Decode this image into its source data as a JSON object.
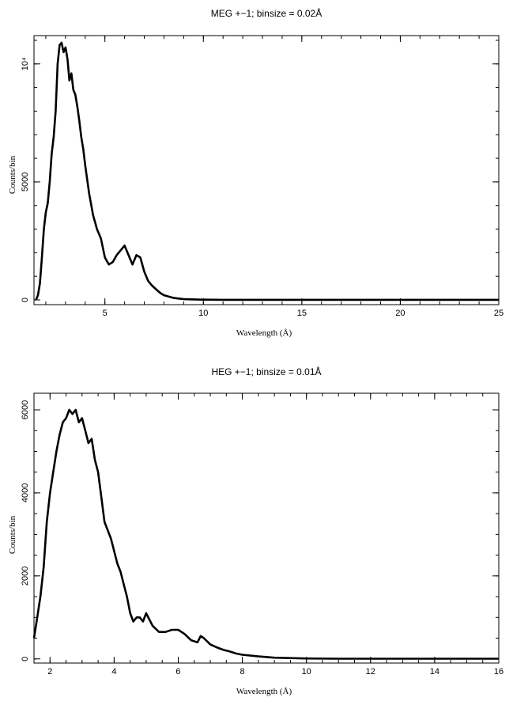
{
  "chart_data": [
    {
      "type": "line",
      "title": "MEG +−1; binsize = 0.02Å",
      "xlabel": "Wavelength (Å)",
      "ylabel": "Counts/bin",
      "xlim": [
        1.4,
        25
      ],
      "ylim": [
        -200,
        11200
      ],
      "xticks": [
        5,
        10,
        15,
        20,
        25
      ],
      "yticks": [
        {
          "value": 0,
          "label": "0"
        },
        {
          "value": 5000,
          "label": "5000"
        },
        {
          "value": 10000,
          "label": "10⁴"
        }
      ],
      "series": [
        {
          "color": "#000000",
          "x": [
            1.5,
            1.6,
            1.7,
            1.8,
            1.9,
            2.0,
            2.1,
            2.2,
            2.3,
            2.4,
            2.5,
            2.6,
            2.7,
            2.8,
            2.9,
            3.0,
            3.1,
            3.2,
            3.3,
            3.4,
            3.5,
            3.6,
            3.7,
            3.8,
            3.9,
            4.0,
            4.2,
            4.4,
            4.6,
            4.8,
            5.0,
            5.2,
            5.4,
            5.6,
            5.8,
            6.0,
            6.2,
            6.4,
            6.6,
            6.8,
            7.0,
            7.2,
            7.4,
            7.6,
            7.8,
            8.0,
            8.5,
            9.0,
            9.5,
            10,
            11,
            12,
            14,
            16,
            18,
            20,
            22,
            25
          ],
          "y": [
            0,
            200,
            700,
            1800,
            3000,
            3700,
            4100,
            5000,
            6200,
            6900,
            8000,
            10000,
            10800,
            10900,
            10500,
            10700,
            10200,
            9300,
            9600,
            8900,
            8700,
            8200,
            7600,
            6900,
            6400,
            5700,
            4500,
            3600,
            3000,
            2600,
            1800,
            1500,
            1600,
            1900,
            2100,
            2300,
            1900,
            1500,
            1900,
            1800,
            1200,
            800,
            600,
            450,
            300,
            200,
            80,
            30,
            20,
            10,
            5,
            5,
            5,
            5,
            5,
            5,
            5,
            5
          ]
        }
      ]
    },
    {
      "type": "line",
      "title": "HEG +−1; binsize = 0.01Å",
      "xlabel": "Wavelength (Å)",
      "ylabel": "Counts/bin",
      "xlim": [
        1.5,
        16
      ],
      "ylim": [
        -100,
        6400
      ],
      "xticks": [
        2,
        4,
        6,
        8,
        10,
        12,
        14,
        16
      ],
      "yticks": [
        {
          "value": 0,
          "label": "0"
        },
        {
          "value": 2000,
          "label": "2000"
        },
        {
          "value": 4000,
          "label": "4000"
        },
        {
          "value": 6000,
          "label": "6000"
        }
      ],
      "series": [
        {
          "color": "#000000",
          "x": [
            1.5,
            1.6,
            1.7,
            1.8,
            1.9,
            2.0,
            2.1,
            2.2,
            2.3,
            2.4,
            2.5,
            2.6,
            2.7,
            2.8,
            2.9,
            3.0,
            3.1,
            3.2,
            3.3,
            3.4,
            3.5,
            3.6,
            3.7,
            3.8,
            3.9,
            4.0,
            4.1,
            4.2,
            4.3,
            4.4,
            4.5,
            4.6,
            4.7,
            4.8,
            4.9,
            5.0,
            5.2,
            5.4,
            5.6,
            5.8,
            6.0,
            6.2,
            6.4,
            6.6,
            6.7,
            6.8,
            7.0,
            7.2,
            7.4,
            7.6,
            7.8,
            8.0,
            8.5,
            9.0,
            9.5,
            10,
            11,
            12,
            13,
            14,
            15,
            16
          ],
          "y": [
            500,
            1000,
            1500,
            2200,
            3300,
            4000,
            4500,
            5000,
            5400,
            5700,
            5800,
            6000,
            5900,
            6000,
            5700,
            5800,
            5500,
            5200,
            5300,
            4800,
            4500,
            3900,
            3300,
            3100,
            2900,
            2600,
            2300,
            2100,
            1800,
            1500,
            1100,
            900,
            1000,
            1000,
            900,
            1100,
            800,
            650,
            650,
            700,
            700,
            600,
            450,
            400,
            550,
            500,
            350,
            280,
            220,
            180,
            130,
            100,
            60,
            30,
            20,
            10,
            5,
            5,
            5,
            5,
            5,
            5
          ]
        }
      ]
    }
  ]
}
